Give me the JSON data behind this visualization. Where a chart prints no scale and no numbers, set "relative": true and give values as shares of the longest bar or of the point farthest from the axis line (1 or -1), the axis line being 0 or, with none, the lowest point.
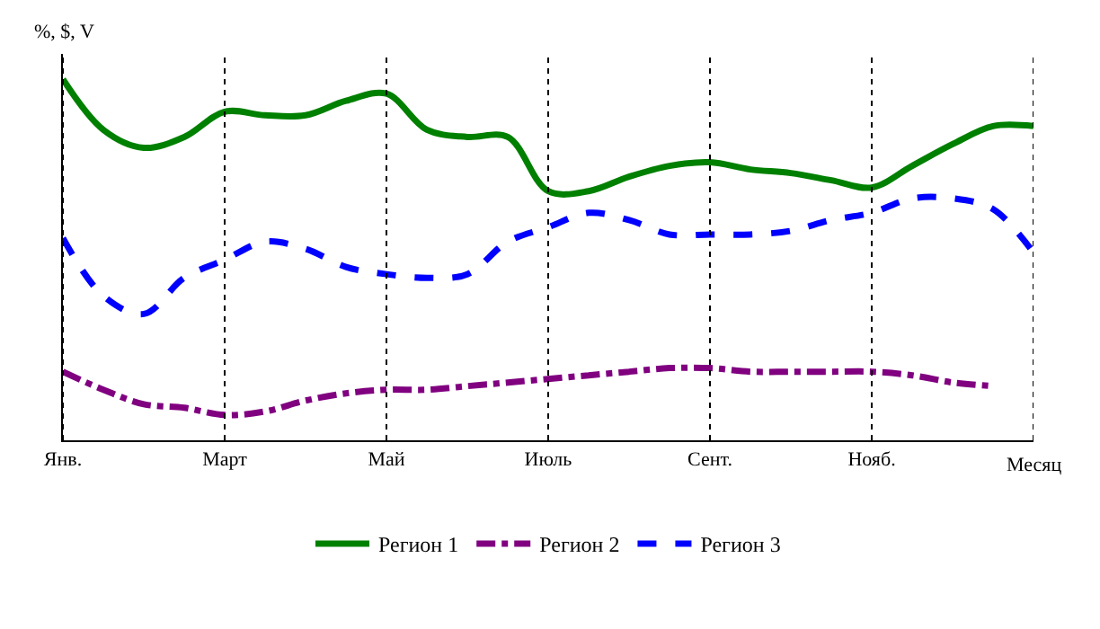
{
  "chart_data": {
    "type": "line",
    "relative": true,
    "xlabel": "Месяц",
    "ylabel": "%, $, V",
    "categories": [
      "Янв.",
      null,
      null,
      null,
      "Март",
      null,
      null,
      null,
      "Май",
      null,
      null,
      null,
      "Июль",
      null,
      null,
      null,
      "Сент.",
      null,
      null,
      null,
      "Нояб.",
      null,
      null,
      null,
      null
    ],
    "grid": "x",
    "legend": "bottom",
    "marker": "none",
    "series": [
      {
        "name": "Регион 1",
        "color": "#008000",
        "line_style": "solid",
        "values": [
          1,
          0.86,
          0.81,
          0.84,
          0.91,
          0.9,
          0.9,
          0.94,
          0.96,
          0.86,
          0.84,
          0.84,
          0.69,
          0.69,
          0.73,
          0.76,
          0.77,
          0.75,
          0.74,
          0.72,
          0.7,
          0.76,
          0.82,
          0.87,
          0.87
        ]
      },
      {
        "name": "Регион 2",
        "color": "#800080",
        "line_style": "dashdot",
        "values": [
          0.19,
          0.14,
          0.1,
          0.09,
          0.07,
          0.08,
          0.11,
          0.13,
          0.14,
          0.14,
          0.15,
          0.16,
          0.17,
          0.18,
          0.19,
          0.2,
          0.2,
          0.19,
          0.19,
          0.19,
          0.19,
          0.18,
          0.16,
          0.15,
          null
        ]
      },
      {
        "name": "Регион 3",
        "color": "#0000ff",
        "line_style": "dashed",
        "values": [
          0.56,
          0.4,
          0.35,
          0.45,
          0.5,
          0.55,
          0.53,
          0.48,
          0.46,
          0.45,
          0.46,
          0.55,
          0.59,
          0.63,
          0.61,
          0.57,
          0.57,
          0.57,
          0.58,
          0.61,
          0.63,
          0.67,
          0.67,
          0.64,
          0.52
        ]
      }
    ]
  }
}
